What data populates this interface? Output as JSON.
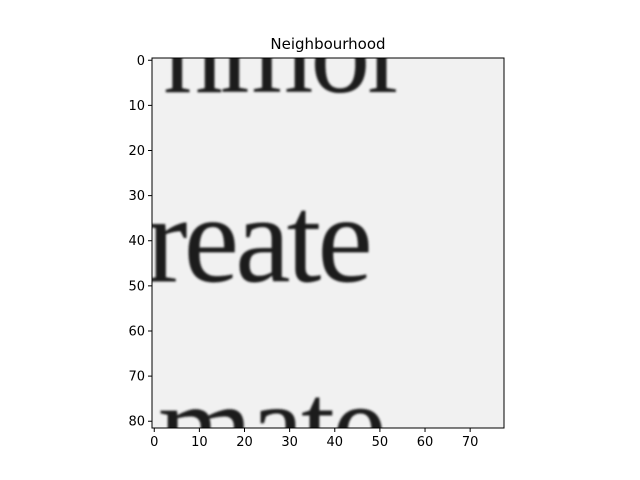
{
  "chart_data": {
    "type": "heatmap",
    "title": "Neighbourhood",
    "colormap": "gray",
    "xlim": [
      -0.5,
      77.5
    ],
    "ylim": [
      81.5,
      -0.5
    ],
    "x_ticks": [
      0,
      10,
      20,
      30,
      40,
      50,
      60,
      70
    ],
    "y_ticks": [
      0,
      10,
      20,
      30,
      40,
      50,
      60,
      70,
      80
    ],
    "image_text_lines": [
      {
        "text": "nmor",
        "baseline_row": 7
      },
      {
        "text": "reate",
        "baseline_row": 49
      },
      {
        "text": "mate",
        "baseline_row": 90
      }
    ]
  }
}
